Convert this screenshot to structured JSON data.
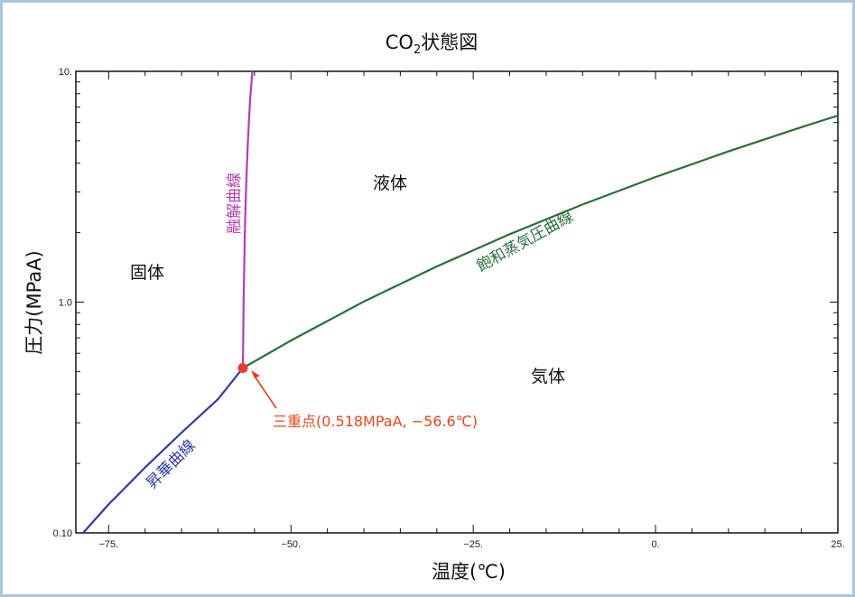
{
  "chart_data": {
    "type": "line",
    "title": "CO",
    "title_sub": "2",
    "title_rest": "状態図",
    "xlabel": "温度(℃)",
    "ylabel": "圧力(MPaA)",
    "x_scale": "linear",
    "y_scale": "log",
    "xlim": [
      -79.5,
      25
    ],
    "ylim": [
      0.1,
      10
    ],
    "x_ticks": [
      {
        "value": -75,
        "label": "−75."
      },
      {
        "value": -50,
        "label": "−50."
      },
      {
        "value": -25,
        "label": "−25."
      },
      {
        "value": 0,
        "label": "0."
      },
      {
        "value": 25,
        "label": "25."
      }
    ],
    "y_ticks": [
      {
        "value": 10,
        "label": "10."
      },
      {
        "value": 1,
        "label": "1.0"
      },
      {
        "value": 0.1,
        "label": "0.10"
      }
    ],
    "grid": false,
    "series": [
      {
        "name": "融解曲線",
        "color": "#b13db3",
        "x": [
          -56.6,
          -56.55,
          -56.5,
          -56.4,
          -56.3,
          -56.1,
          -55.9,
          -55.6,
          -55.3
        ],
        "y": [
          0.518,
          0.7,
          1.0,
          1.5,
          2.2,
          3.5,
          5.0,
          7.5,
          10.0
        ]
      },
      {
        "name": "飽和蒸気圧曲線",
        "color": "#2b6e3a",
        "x": [
          -56.6,
          -50,
          -40,
          -30,
          -20,
          -10,
          0,
          10,
          20,
          25
        ],
        "y": [
          0.518,
          0.682,
          1.005,
          1.428,
          1.97,
          2.65,
          3.485,
          4.502,
          5.73,
          6.43
        ]
      },
      {
        "name": "昇華曲線",
        "color": "#2c3aa6",
        "x": [
          -78.5,
          -75,
          -70,
          -65,
          -60,
          -56.6
        ],
        "y": [
          0.1,
          0.133,
          0.192,
          0.272,
          0.38,
          0.518
        ]
      }
    ],
    "triple_point": {
      "x": -56.6,
      "y": 0.518,
      "color": "#e8402a",
      "label": "三重点(0.518MPaA, −56.6℃)"
    },
    "region_labels": {
      "solid": "固体",
      "liquid": "液体",
      "gas": "気体"
    }
  }
}
